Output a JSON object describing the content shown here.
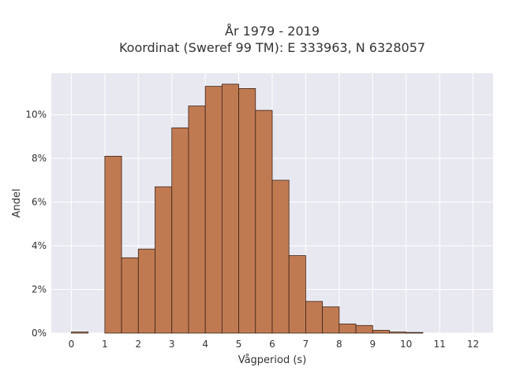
{
  "chart_data": {
    "type": "bar",
    "title": "År 1979 - 2019",
    "subtitle": "Koordinat (Sweref 99 TM): E 333963, N 6328057",
    "xlabel": "Vågperiod (s)",
    "ylabel": "Andel",
    "bin_width": 0.5,
    "bin_starts": [
      0,
      0.5,
      1,
      1.5,
      2,
      2.5,
      3,
      3.5,
      4,
      4.5,
      5,
      5.5,
      6,
      6.5,
      7,
      7.5,
      8,
      8.5,
      9,
      9.5,
      10
    ],
    "values": [
      0.05,
      0,
      8.1,
      3.45,
      3.85,
      6.7,
      9.4,
      10.4,
      11.3,
      11.4,
      11.2,
      10.2,
      7.0,
      3.55,
      1.45,
      1.2,
      0.42,
      0.35,
      0.13,
      0.05,
      0.03
    ],
    "xlim": [
      -0.6,
      12.6
    ],
    "ylim": [
      0,
      11.9
    ],
    "xticks": [
      0,
      1,
      2,
      3,
      4,
      5,
      6,
      7,
      8,
      9,
      10,
      11,
      12
    ],
    "yticks": [
      0,
      2,
      4,
      6,
      8,
      10
    ],
    "ytick_suffix": "%",
    "grid": true,
    "bar_color": "#c07a52",
    "bar_edge_color": "#3b2418",
    "plot_background": "#e8e8f0",
    "grid_color": "#ffffff"
  }
}
